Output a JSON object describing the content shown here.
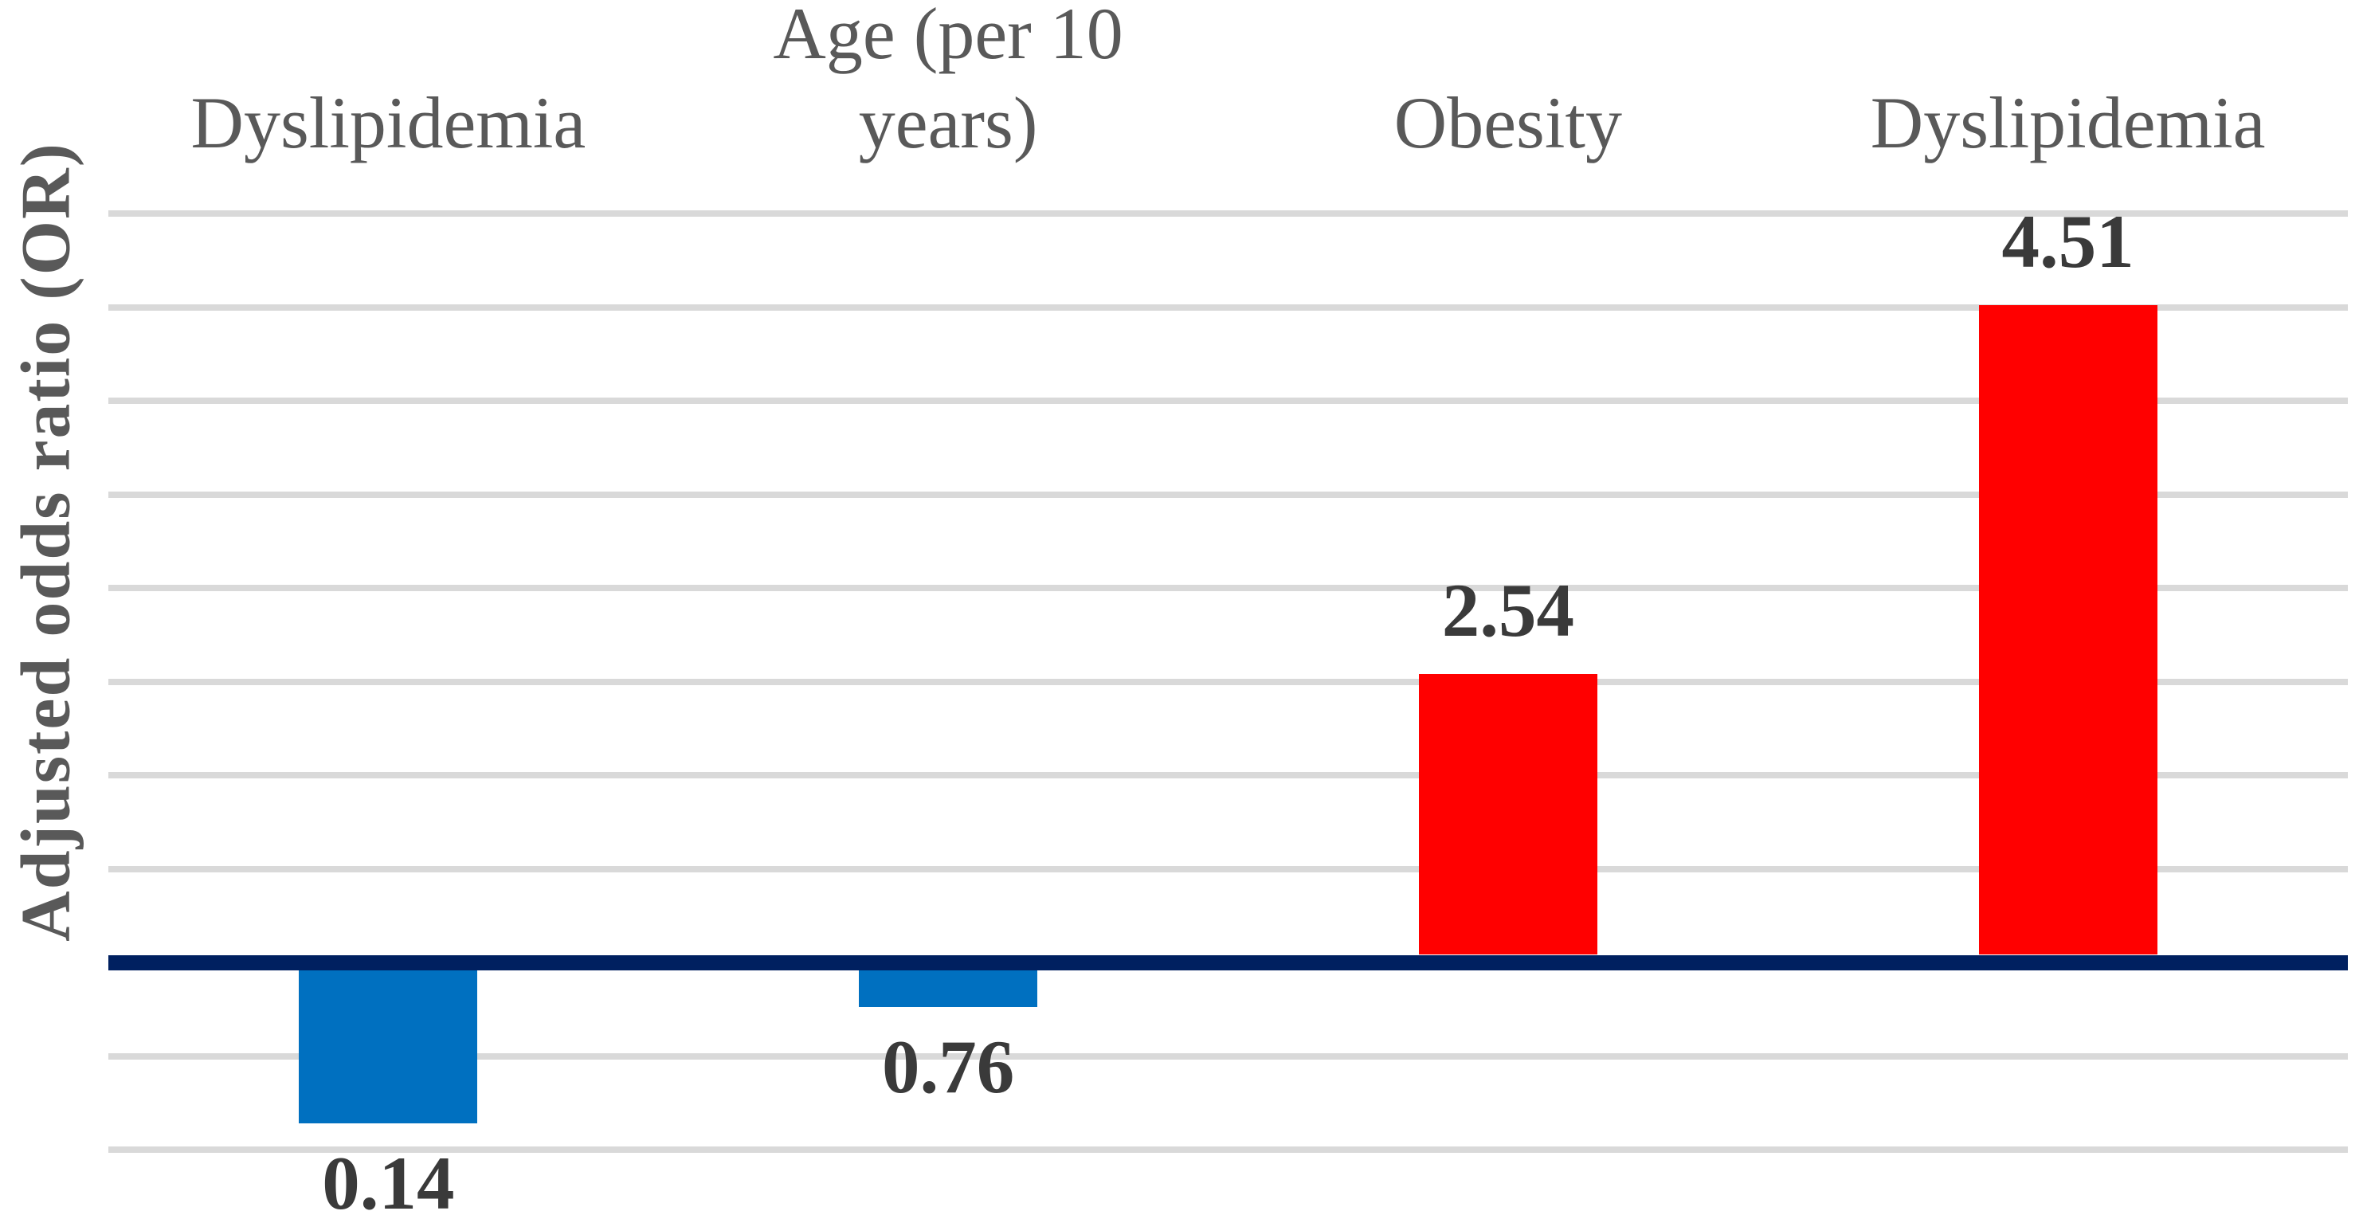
{
  "chart_data": {
    "type": "bar",
    "categories": [
      "Dyslipidemia",
      "Age (per 10\nyears)",
      "Obesity",
      "Dyslipidemia"
    ],
    "values": [
      0.14,
      0.76,
      2.54,
      4.51
    ],
    "data_labels": [
      "0.14",
      "0.76",
      "2.54",
      "4.51"
    ],
    "bar_colors": [
      "#0070C0",
      "#0070C0",
      "#FF0000",
      "#FF0000"
    ],
    "title": "",
    "xlabel": "",
    "ylabel": "Adjusted odds ratio (OR)",
    "ylim": [
      0,
      5
    ],
    "baseline_value": 1,
    "gridline_step": 0.5,
    "grid": true,
    "legend": false,
    "axis_tick_labels_visible": false,
    "colors": {
      "below_baseline_bar": "#0070C0",
      "above_baseline_bar": "#FF0000",
      "baseline_axis": "#002060",
      "gridline": "#D9D9D9",
      "category_label": "#595959",
      "data_label": "#3A3A3A",
      "axis_title": "#595959",
      "background": "#FFFFFF"
    }
  }
}
